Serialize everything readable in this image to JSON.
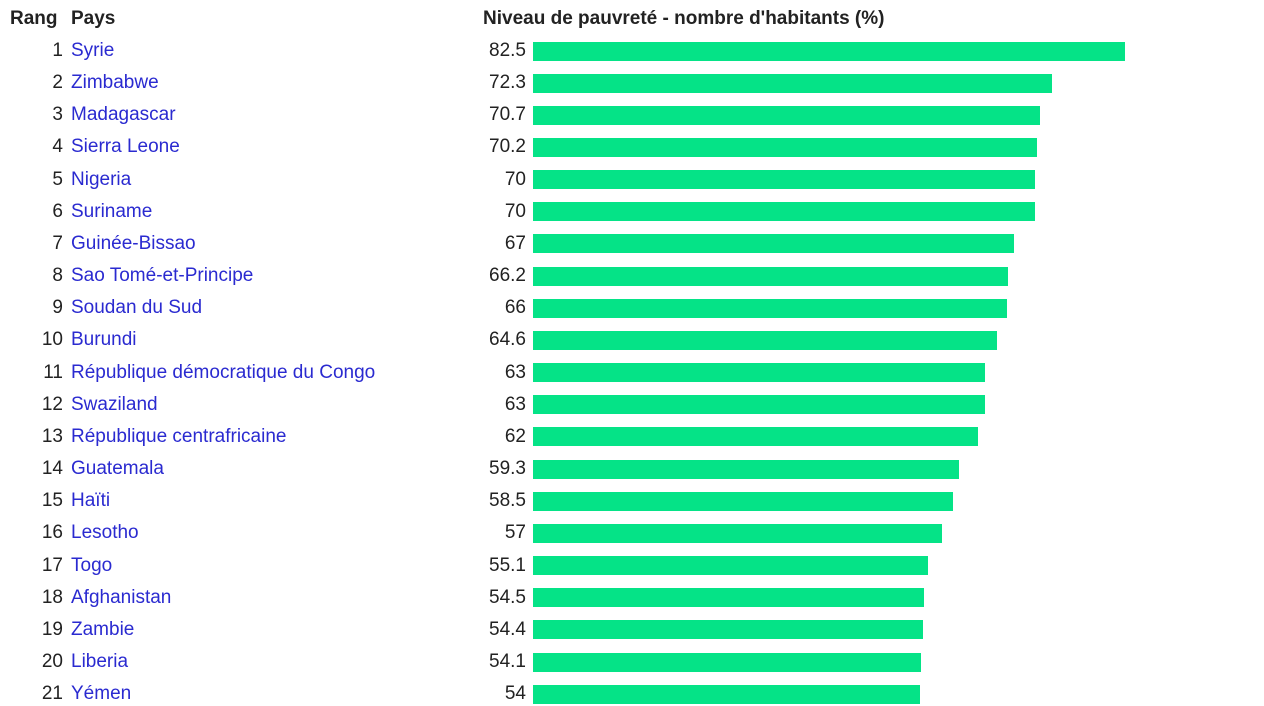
{
  "header": {
    "rank": "Rang",
    "country": "Pays",
    "value": "Niveau de pauvreté - nombre d'habitants (%)"
  },
  "rows": [
    {
      "rank": 1,
      "country": "Syrie",
      "value": 82.5
    },
    {
      "rank": 2,
      "country": "Zimbabwe",
      "value": 72.3
    },
    {
      "rank": 3,
      "country": "Madagascar",
      "value": 70.7
    },
    {
      "rank": 4,
      "country": "Sierra Leone",
      "value": 70.2
    },
    {
      "rank": 5,
      "country": "Nigeria",
      "value": 70
    },
    {
      "rank": 6,
      "country": "Suriname",
      "value": 70
    },
    {
      "rank": 7,
      "country": "Guinée-Bissao",
      "value": 67
    },
    {
      "rank": 8,
      "country": "Sao Tomé-et-Principe",
      "value": 66.2
    },
    {
      "rank": 9,
      "country": "Soudan du Sud",
      "value": 66
    },
    {
      "rank": 10,
      "country": "Burundi",
      "value": 64.6
    },
    {
      "rank": 11,
      "country": "République démocratique du Congo",
      "value": 63
    },
    {
      "rank": 12,
      "country": "Swaziland",
      "value": 63
    },
    {
      "rank": 13,
      "country": "République centrafricaine",
      "value": 62
    },
    {
      "rank": 14,
      "country": "Guatemala",
      "value": 59.3
    },
    {
      "rank": 15,
      "country": "Haïti",
      "value": 58.5
    },
    {
      "rank": 16,
      "country": "Lesotho",
      "value": 57
    },
    {
      "rank": 17,
      "country": "Togo",
      "value": 55.1
    },
    {
      "rank": 18,
      "country": "Afghanistan",
      "value": 54.5
    },
    {
      "rank": 19,
      "country": "Zambie",
      "value": 54.4
    },
    {
      "rank": 20,
      "country": "Liberia",
      "value": 54.1
    },
    {
      "rank": 21,
      "country": "Yémen",
      "value": 54
    }
  ]
}
